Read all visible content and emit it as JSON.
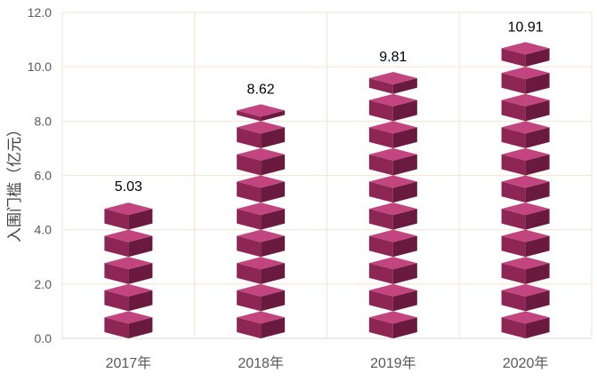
{
  "chart_data": {
    "type": "bar",
    "categories": [
      "2017年",
      "2018年",
      "2019年",
      "2020年"
    ],
    "values": [
      5.03,
      8.62,
      9.81,
      10.91
    ],
    "data_labels": [
      "5.03",
      "8.62",
      "9.81",
      "10.91"
    ],
    "title": "",
    "xlabel": "",
    "ylabel": "入围门槛（亿元）",
    "ylim": [
      0,
      12
    ],
    "y_ticks": [
      0,
      2,
      4,
      6,
      8,
      10,
      12
    ],
    "y_tick_labels": [
      "0.0",
      "2.0",
      "4.0",
      "6.0",
      "8.0",
      "10.0",
      "12.0"
    ],
    "grid": true,
    "legend": "none",
    "colors": {
      "bar_top": "#c2457f",
      "bar_front": "#8e2655",
      "bar_side": "#6a1a3e",
      "grid": "#f6e3d3",
      "axis": "#d9d9d9"
    }
  }
}
